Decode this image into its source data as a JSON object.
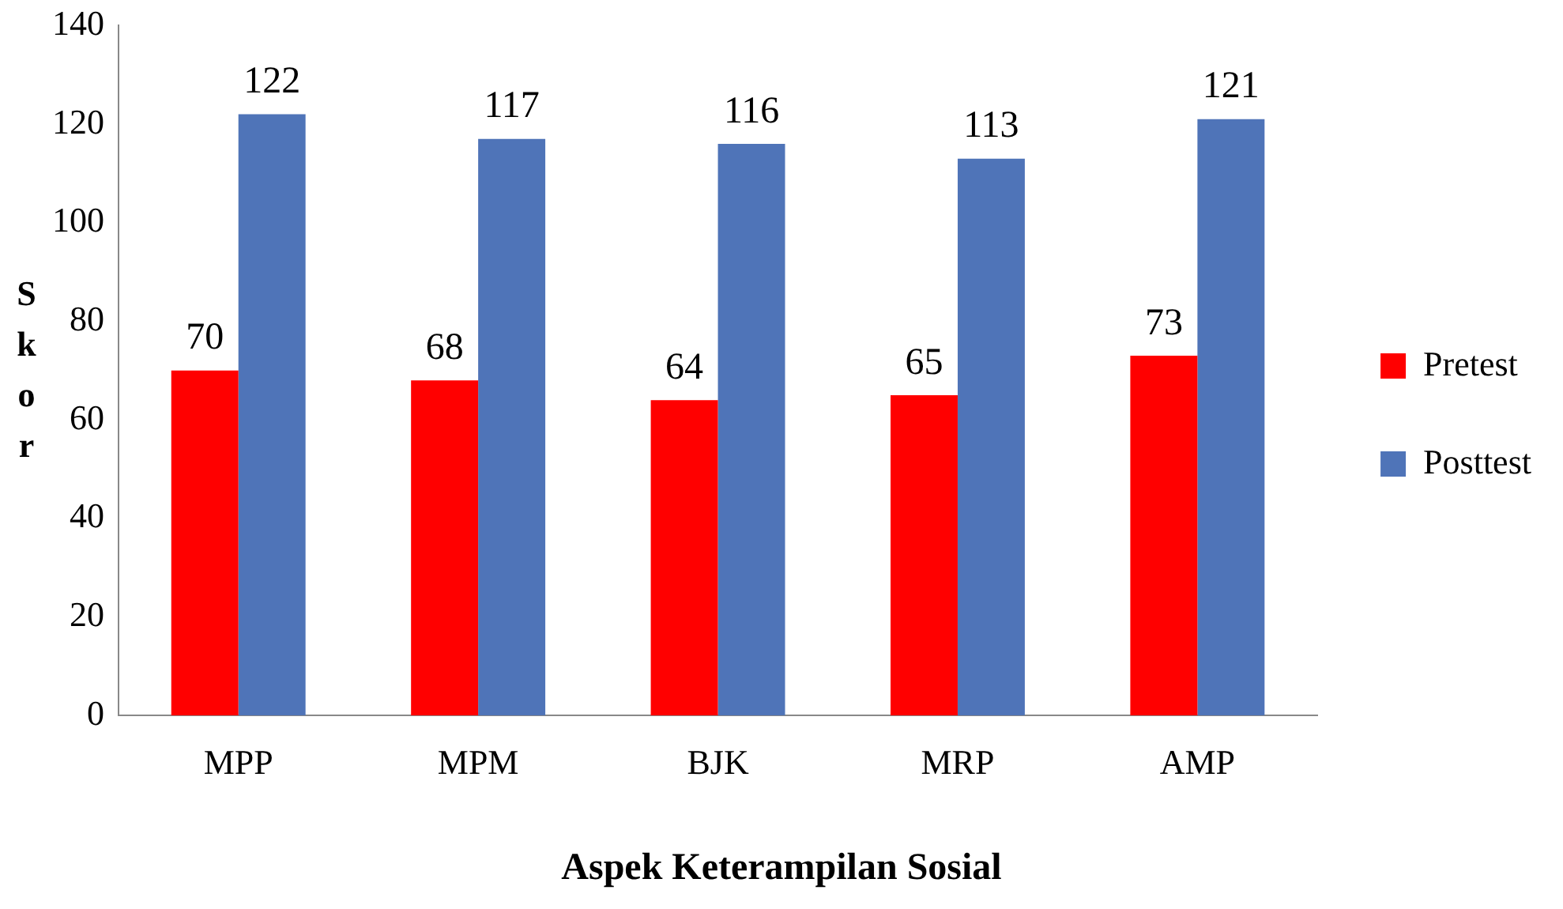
{
  "chart_data": {
    "type": "bar",
    "xlabel": "Aspek Keterampilan Sosial",
    "ylabel": "Skor",
    "categories": [
      "MPP",
      "MPM",
      "BJK",
      "MRP",
      "AMP"
    ],
    "series": [
      {
        "name": "Pretest",
        "color": "#ff0000",
        "values": [
          70,
          68,
          64,
          65,
          73
        ]
      },
      {
        "name": "Posttest",
        "color": "#4f74b8",
        "values": [
          122,
          117,
          116,
          113,
          121
        ]
      }
    ],
    "ylim": [
      0,
      140
    ],
    "yticks": [
      0,
      20,
      40,
      60,
      80,
      100,
      120,
      140
    ],
    "grid": false,
    "legend": "right",
    "data_labels": true
  }
}
